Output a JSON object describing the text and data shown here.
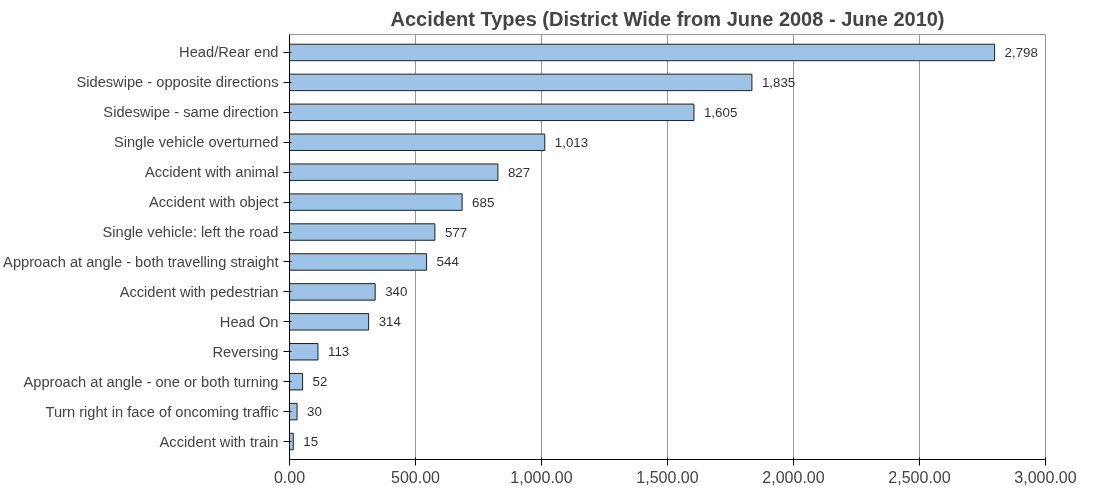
{
  "chart_data": {
    "type": "bar",
    "orientation": "horizontal",
    "title": "Accident Types (District Wide from June 2008 - June 2010)",
    "categories": [
      "Head/Rear end",
      "Sideswipe - opposite directions",
      "Sideswipe - same direction",
      "Single vehicle overturned",
      "Accident with animal",
      "Accident with object",
      "Single vehicle: left the road",
      "Approach at angle - both travelling straight",
      "Accident with pedestrian",
      "Head On",
      "Reversing",
      "Approach at angle - one or both turning",
      "Turn right in face of oncoming traffic",
      "Accident with train"
    ],
    "values": [
      2798,
      1835,
      1605,
      1013,
      827,
      685,
      577,
      544,
      340,
      314,
      113,
      52,
      30,
      15
    ],
    "value_labels": [
      "2,798",
      "1,835",
      "1,605",
      "1,013",
      "827",
      "685",
      "577",
      "544",
      "340",
      "314",
      "113",
      "52",
      "30",
      "15"
    ],
    "color": "#9dc3e6",
    "xlim": [
      0,
      3000
    ],
    "xticks": [
      {
        "value": 0,
        "label": "0.00"
      },
      {
        "value": 500,
        "label": "500.00"
      },
      {
        "value": 1000,
        "label": "1,000.00"
      },
      {
        "value": 1500,
        "label": "1,500.00"
      },
      {
        "value": 2000,
        "label": "2,000.00"
      },
      {
        "value": 2500,
        "label": "2,500.00"
      },
      {
        "value": 3000,
        "label": "3,000.00"
      }
    ],
    "grid": "x"
  }
}
